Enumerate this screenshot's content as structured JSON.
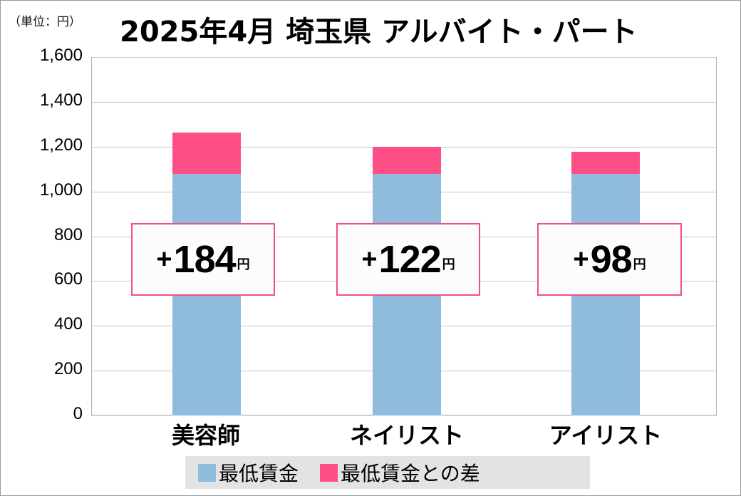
{
  "unit_label": "（単位：円）",
  "title": "2025年4月 埼玉県 アルバイト・パート",
  "colors": {
    "base": "#8fbcdc",
    "diff": "#fd4f86",
    "box_border": "#f0508a",
    "legend_bg": "#e3e3e3"
  },
  "y_ticks": [
    "1,600",
    "1,400",
    "1,200",
    "1,000",
    "800",
    "600",
    "400",
    "200",
    "0"
  ],
  "boxes": [
    {
      "plus": "+",
      "value": "184",
      "yen": "円"
    },
    {
      "plus": "+",
      "value": "122",
      "yen": "円"
    },
    {
      "plus": "+",
      "value": "98",
      "yen": "円"
    }
  ],
  "categories": [
    "美容師",
    "ネイリスト",
    "アイリスト"
  ],
  "legend": [
    {
      "label": "最低賃金"
    },
    {
      "label": "最低賃金との差"
    }
  ],
  "chart_data": {
    "type": "bar",
    "stacked": true,
    "title": "2025年4月 埼玉県 アルバイト・パート",
    "unit": "（単位：円）",
    "categories": [
      "美容師",
      "ネイリスト",
      "アイリスト"
    ],
    "series": [
      {
        "name": "最低賃金",
        "values": [
          1078,
          1078,
          1078
        ],
        "color": "#8fbcdc"
      },
      {
        "name": "最低賃金との差",
        "values": [
          184,
          122,
          98
        ],
        "color": "#fd4f86"
      }
    ],
    "annotations": [
      "+184円",
      "+122円",
      "+98円"
    ],
    "xlabel": "",
    "ylabel": "",
    "ylim": [
      0,
      1600
    ],
    "y_ticks": [
      0,
      200,
      400,
      600,
      800,
      1000,
      1200,
      1400,
      1600
    ],
    "grid": true,
    "legend_position": "bottom"
  }
}
